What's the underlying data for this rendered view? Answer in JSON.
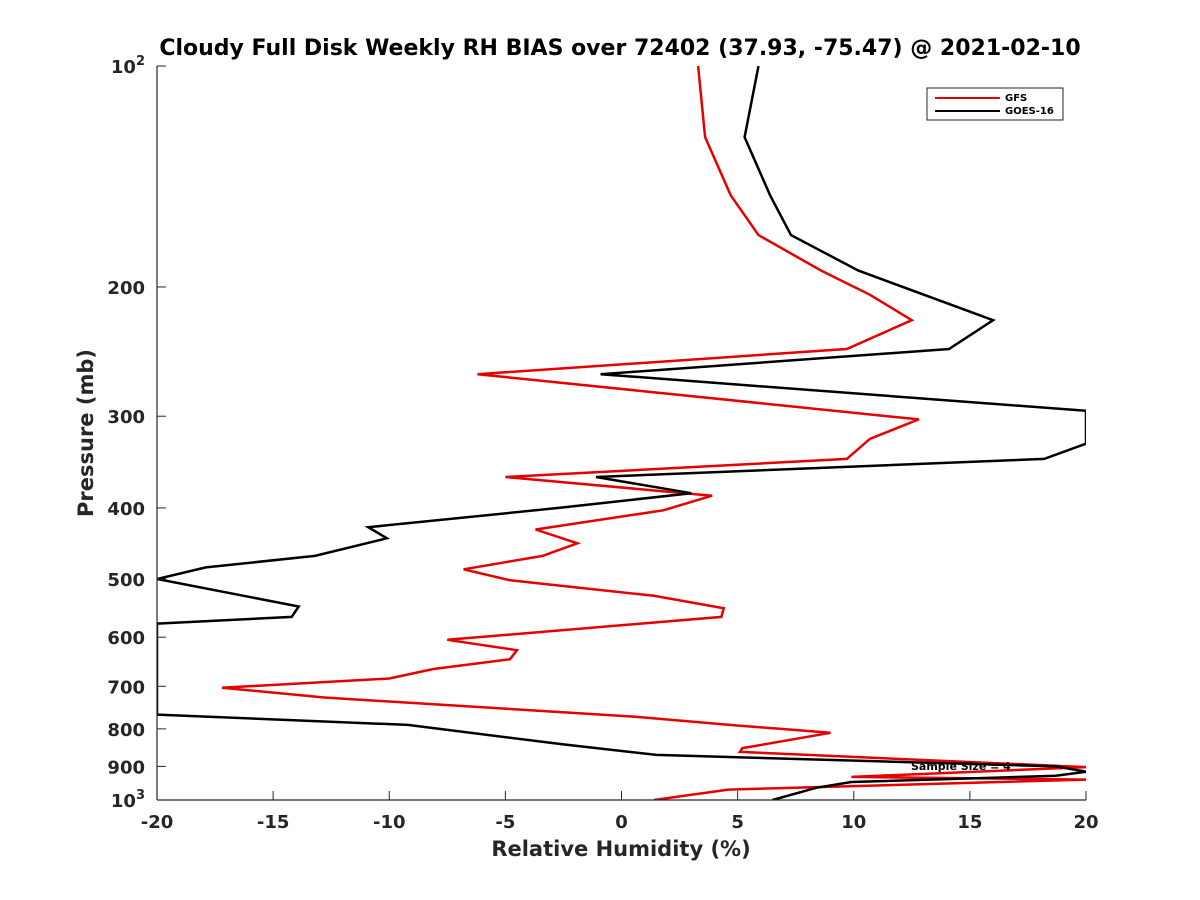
{
  "chart_data": {
    "type": "line",
    "title": "Cloudy Full Disk Weekly RH BIAS over 72402 (37.93, -75.47) @ 2021-02-10",
    "xlabel": "Relative Humidity (%)",
    "ylabel": "Pressure (mb)",
    "xlim": [
      -20,
      20
    ],
    "ylim": [
      100,
      1000
    ],
    "yscale": "log",
    "yreversed": true,
    "grid": false,
    "legend_position": "top-right",
    "x_ticks": [
      {
        "value": -20,
        "label": "-20"
      },
      {
        "value": -15,
        "label": "-15"
      },
      {
        "value": -10,
        "label": "-10"
      },
      {
        "value": -5,
        "label": "-5"
      },
      {
        "value": 0,
        "label": "0"
      },
      {
        "value": 5,
        "label": "5"
      },
      {
        "value": 10,
        "label": "10"
      },
      {
        "value": 15,
        "label": "15"
      },
      {
        "value": 20,
        "label": "20"
      }
    ],
    "y_ticks": [
      {
        "value": 100,
        "label": "10",
        "sup": "2"
      },
      {
        "value": 200,
        "label": "200",
        "sup": ""
      },
      {
        "value": 300,
        "label": "300",
        "sup": ""
      },
      {
        "value": 400,
        "label": "400",
        "sup": ""
      },
      {
        "value": 500,
        "label": "500",
        "sup": ""
      },
      {
        "value": 600,
        "label": "600",
        "sup": ""
      },
      {
        "value": 700,
        "label": "700",
        "sup": ""
      },
      {
        "value": 800,
        "label": "800",
        "sup": ""
      },
      {
        "value": 900,
        "label": "900",
        "sup": ""
      },
      {
        "value": 1000,
        "label": "10",
        "sup": "3"
      }
    ],
    "series": [
      {
        "name": "GFS",
        "color": "#e60000",
        "points": [
          [
            3.3,
            100
          ],
          [
            3.6,
            125
          ],
          [
            4.7,
            150
          ],
          [
            5.9,
            170
          ],
          [
            8.6,
            190
          ],
          [
            10.7,
            205
          ],
          [
            12.5,
            222
          ],
          [
            9.7,
            243
          ],
          [
            -6.2,
            263
          ],
          [
            12.8,
            303
          ],
          [
            10.7,
            322
          ],
          [
            9.7,
            343
          ],
          [
            -5.0,
            363
          ],
          [
            3.9,
            385
          ],
          [
            1.8,
            403
          ],
          [
            -3.7,
            428
          ],
          [
            -1.9,
            447
          ],
          [
            -3.4,
            465
          ],
          [
            -6.8,
            485
          ],
          [
            -4.8,
            502
          ],
          [
            1.4,
            527
          ],
          [
            4.4,
            548
          ],
          [
            4.3,
            563
          ],
          [
            -7.5,
            605
          ],
          [
            -4.5,
            625
          ],
          [
            -4.8,
            643
          ],
          [
            -8.1,
            663
          ],
          [
            -10.0,
            683
          ],
          [
            -17.2,
            703
          ],
          [
            -12.8,
            725
          ],
          [
            0.6,
            770
          ],
          [
            5.1,
            792
          ],
          [
            9.0,
            810
          ],
          [
            5.2,
            850
          ],
          [
            5.1,
            860
          ],
          [
            20.0,
            902
          ],
          [
            9.9,
            930
          ],
          [
            20.0,
            938
          ],
          [
            4.6,
            968
          ],
          [
            1.4,
            1000
          ]
        ]
      },
      {
        "name": "GOES-16",
        "color": "#000000",
        "points": [
          [
            5.9,
            100
          ],
          [
            5.3,
            125
          ],
          [
            6.4,
            150
          ],
          [
            7.3,
            170
          ],
          [
            10.2,
            190
          ],
          [
            16.0,
            222
          ],
          [
            14.1,
            243
          ],
          [
            -0.9,
            263
          ],
          [
            20.0,
            295
          ],
          [
            20.0,
            327
          ],
          [
            18.2,
            343
          ],
          [
            -1.1,
            363
          ],
          [
            3.0,
            382
          ],
          [
            -2.7,
            400
          ],
          [
            -10.9,
            425
          ],
          [
            -10.1,
            440
          ],
          [
            -13.2,
            465
          ],
          [
            -17.9,
            482
          ],
          [
            -20.0,
            500
          ],
          [
            -13.9,
            545
          ],
          [
            -14.2,
            563
          ],
          [
            -20.0,
            575
          ],
          [
            -20.0,
            765
          ],
          [
            -9.2,
            790
          ],
          [
            -2.5,
            840
          ],
          [
            1.5,
            868
          ],
          [
            18.7,
            900
          ],
          [
            20.0,
            915
          ],
          [
            18.7,
            927
          ],
          [
            9.9,
            945
          ],
          [
            8.4,
            962
          ],
          [
            6.5,
            1000
          ]
        ]
      }
    ],
    "annotations": [
      {
        "text": "Sample Size = 4"
      }
    ]
  }
}
